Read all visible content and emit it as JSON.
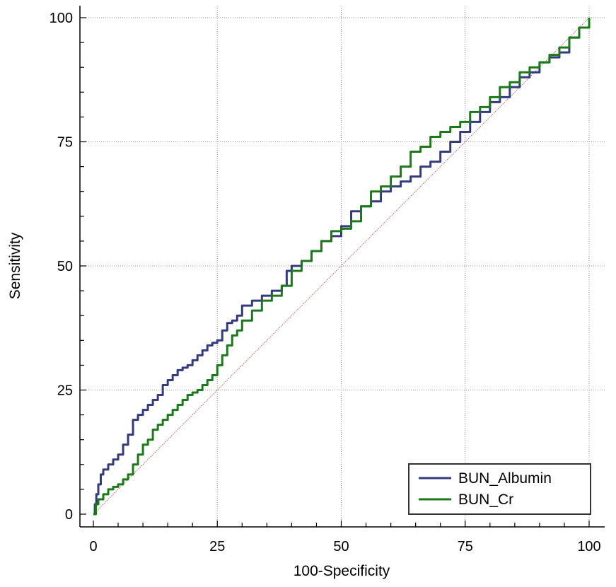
{
  "chart_data": {
    "type": "line",
    "title": "",
    "xlabel": "100-Specificity",
    "ylabel": "Sensitivity",
    "xlim": [
      0,
      100
    ],
    "ylim": [
      0,
      100
    ],
    "xticks": [
      "0",
      "25",
      "50",
      "75",
      "100"
    ],
    "yticks": [
      "0",
      "25",
      "50",
      "75",
      "100"
    ],
    "grid": true,
    "legend_position": "bottom-right",
    "reference_line": {
      "x": [
        0,
        100
      ],
      "y": [
        0,
        100
      ],
      "color": "#b06060"
    },
    "series": [
      {
        "name": "BUN_Albumin",
        "color": "#333a7e",
        "x": [
          0,
          0.3,
          0.6,
          1,
          1.5,
          2,
          3,
          4,
          5,
          6,
          7,
          8,
          9,
          10,
          11,
          12,
          13,
          14,
          15,
          16,
          17,
          18,
          19,
          20,
          21,
          22,
          23,
          24,
          25,
          26,
          27,
          28,
          29,
          30,
          32,
          34,
          36,
          38,
          39,
          40,
          42,
          44,
          46,
          48,
          50,
          52,
          54,
          56,
          58,
          60,
          62,
          64,
          66,
          68,
          70,
          72,
          74,
          76,
          78,
          80,
          82,
          84,
          86,
          88,
          90,
          92,
          94,
          96,
          98,
          100
        ],
        "y": [
          0,
          2,
          4,
          6,
          8,
          9,
          10,
          11,
          12,
          14,
          16,
          19,
          20,
          21,
          22,
          23,
          24,
          26,
          27,
          28,
          29,
          29.5,
          30,
          31,
          32,
          33,
          34,
          34.5,
          35,
          37,
          38.5,
          39,
          40,
          42,
          43,
          44,
          45,
          46,
          49,
          50,
          51,
          53,
          55,
          56,
          58,
          61,
          62,
          63,
          65,
          66,
          67,
          68,
          70,
          71,
          73,
          75,
          77,
          79,
          81,
          83,
          84,
          86,
          88,
          89,
          91,
          92,
          93,
          96,
          98,
          100
        ]
      },
      {
        "name": "BUN_Cr",
        "color": "#1a7a1a",
        "x": [
          0,
          0.5,
          1,
          2,
          3,
          4,
          5,
          6,
          7,
          8,
          9,
          10,
          11,
          12,
          13,
          14,
          15,
          16,
          17,
          18,
          19,
          20,
          21,
          22,
          23,
          24,
          25,
          26,
          27,
          28,
          29,
          30,
          32,
          34,
          36,
          38,
          40,
          42,
          44,
          46,
          48,
          50,
          52,
          54,
          56,
          58,
          60,
          62,
          64,
          66,
          68,
          70,
          72,
          74,
          76,
          78,
          80,
          82,
          84,
          86,
          88,
          90,
          92,
          94,
          96,
          98,
          100
        ],
        "y": [
          0,
          2,
          3,
          4,
          5,
          5.5,
          6,
          7,
          8,
          10,
          12,
          14,
          15,
          17,
          18,
          19,
          20,
          21,
          22,
          23,
          24,
          24.5,
          25,
          26,
          27,
          28,
          30,
          32,
          34,
          36,
          37,
          39,
          41,
          43,
          44,
          46,
          49,
          51,
          53,
          55,
          57,
          57.5,
          59,
          62,
          65,
          66,
          68,
          70,
          73,
          74,
          76,
          77,
          78,
          79,
          81,
          82,
          84,
          86,
          87,
          89,
          90,
          91,
          92.5,
          94,
          96,
          98,
          100
        ]
      }
    ]
  }
}
